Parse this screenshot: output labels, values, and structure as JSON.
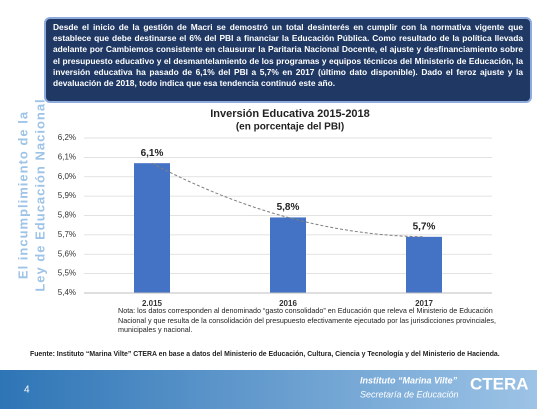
{
  "header_text": "Desde el inicio de la gestión de Macri se demostró un total desinterés en cumplir con la normativa vigente que establece que debe destinarse el 6% del PBI a financiar la Educación Pública. Como resultado de la política llevada adelante por Cambiemos consistente en clausurar la Paritaria Nacional Docente, el ajuste y desfinanciamiento sobre el presupuesto educativo y el desmantelamiento de los programas y equipos técnicos del Ministerio de Educación, la inversión educativa ha pasado de 6,1% del PBI a 5,7% en 2017 (último dato disponible). Dado el feroz ajuste y la devaluación de 2018, todo indica que esa tendencia continuó este año.",
  "side_title": [
    "El incumplimiento de la",
    "Ley de Educación Nacional"
  ],
  "chart_data": {
    "type": "bar",
    "title": "Inversión Educativa 2015-2018",
    "subtitle": "(en porcentaje del PBI)",
    "categories": [
      "2.015",
      "2016",
      "2017"
    ],
    "values": [
      6.07,
      5.79,
      5.69
    ],
    "value_labels": [
      "6,1%",
      "5,8%",
      "5,7%"
    ],
    "color": "#4472c4",
    "ylim": [
      5.4,
      6.2
    ],
    "yticks": [
      {
        "value": 5.4,
        "label": "5,4%"
      },
      {
        "value": 5.5,
        "label": "5,5%"
      },
      {
        "value": 5.6,
        "label": "5,6%"
      },
      {
        "value": 5.7,
        "label": "5,7%"
      },
      {
        "value": 5.8,
        "label": "5,8%"
      },
      {
        "value": 5.9,
        "label": "5,9%"
      },
      {
        "value": 6.0,
        "label": "6,0%"
      },
      {
        "value": 6.1,
        "label": "6,1%"
      },
      {
        "value": 6.2,
        "label": "6,2%"
      }
    ],
    "grid": true,
    "trendline": true
  },
  "note": "Nota: los datos corresponden al denominado “gasto consolidado” en Educación que releva el Ministerio de Educación Nacional y que resulta de la consolidación del presupuesto efectivamente ejecutado por las jurisdicciones provinciales, municipales y nacional.",
  "source": "Fuente: Instituto “Marina Vilte” CTERA en base a datos del Ministerio de Educación, Cultura, Ciencia y Tecnología y del Ministerio de Hacienda.",
  "page_number": "4",
  "footer": [
    "Instituto “Marina Vilte”",
    "Secretaría de Educación",
    "CTERA"
  ]
}
